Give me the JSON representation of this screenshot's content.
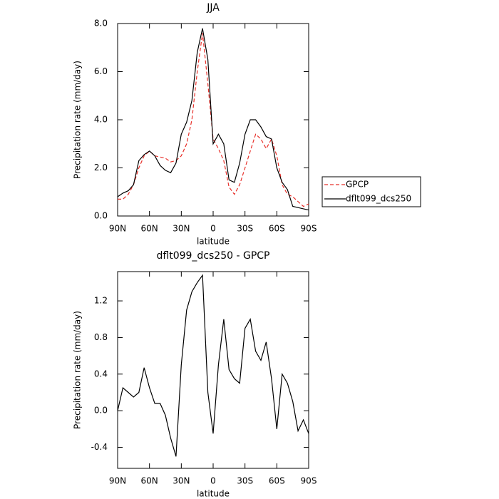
{
  "chart_data": [
    {
      "type": "line",
      "title": "JJA",
      "xlabel": "latitude",
      "ylabel": "Precipitation rate (mm/day)",
      "x": [
        90,
        85,
        80,
        75,
        70,
        65,
        60,
        55,
        50,
        45,
        40,
        35,
        30,
        25,
        20,
        15,
        10,
        5,
        0,
        -5,
        -10,
        -15,
        -20,
        -25,
        -30,
        -35,
        -40,
        -45,
        -50,
        -55,
        -60,
        -65,
        -70,
        -75,
        -80,
        -85,
        -90
      ],
      "xlim": [
        90,
        -90
      ],
      "xticks": [
        {
          "value": 90,
          "label": "90N"
        },
        {
          "value": 60,
          "label": "60N"
        },
        {
          "value": 30,
          "label": "30N"
        },
        0,
        {
          "value": -30,
          "label": "30S"
        },
        {
          "value": -60,
          "label": "60S"
        },
        {
          "value": -90,
          "label": "90S"
        }
      ],
      "ylim": [
        0,
        8
      ],
      "yticks": [
        {
          "value": 0,
          "label": "0.0"
        },
        {
          "value": 2,
          "label": "2.0"
        },
        {
          "value": 4,
          "label": "4.0"
        },
        {
          "value": 6,
          "label": "6.0"
        },
        {
          "value": 8,
          "label": "8.0"
        }
      ],
      "legend": "right",
      "series": [
        {
          "name": "GPCP",
          "color": "#e8302a",
          "line_style": "dashed",
          "values": [
            0.7,
            0.7,
            0.9,
            1.3,
            2.0,
            2.5,
            2.7,
            2.5,
            2.45,
            2.4,
            2.25,
            2.3,
            2.5,
            3.0,
            4.0,
            6.0,
            7.6,
            5.5,
            3.2,
            2.8,
            2.3,
            1.2,
            0.9,
            1.3,
            2.0,
            2.7,
            3.4,
            3.2,
            2.8,
            3.2,
            2.5,
            1.3,
            0.9,
            0.8,
            0.6,
            0.4,
            0.5
          ]
        },
        {
          "name": "dflt099_dcs250",
          "color": "#000000",
          "line_style": "solid",
          "values": [
            0.8,
            0.95,
            1.05,
            1.3,
            2.3,
            2.55,
            2.7,
            2.5,
            2.1,
            1.9,
            1.8,
            2.2,
            3.4,
            3.9,
            4.8,
            6.8,
            7.8,
            6.5,
            3.0,
            3.4,
            3.0,
            1.5,
            1.4,
            2.2,
            3.4,
            4.0,
            4.0,
            3.7,
            3.3,
            3.2,
            2.0,
            1.4,
            1.1,
            0.4,
            0.35,
            0.3,
            0.25
          ]
        }
      ]
    },
    {
      "type": "line",
      "title": "dflt099_dcs250 - GPCP",
      "xlabel": "latitude",
      "ylabel": "Precipitation rate (mm/day)",
      "x": [
        90,
        85,
        80,
        75,
        70,
        65,
        60,
        55,
        50,
        45,
        40,
        35,
        30,
        25,
        20,
        15,
        10,
        5,
        0,
        -5,
        -10,
        -15,
        -20,
        -25,
        -30,
        -35,
        -40,
        -45,
        -50,
        -55,
        -60,
        -65,
        -70,
        -75,
        -80,
        -85,
        -90
      ],
      "xlim": [
        90,
        -90
      ],
      "xticks": [
        {
          "value": 90,
          "label": "90N"
        },
        {
          "value": 60,
          "label": "60N"
        },
        {
          "value": 30,
          "label": "30N"
        },
        0,
        {
          "value": -30,
          "label": "30S"
        },
        {
          "value": -60,
          "label": "60S"
        },
        {
          "value": -90,
          "label": "90S"
        }
      ],
      "ylim": [
        -0.63,
        1.52
      ],
      "yticks": [
        {
          "value": -0.4,
          "label": "-0.4"
        },
        {
          "value": 0,
          "label": "0.0"
        },
        {
          "value": 0.4,
          "label": "0.4"
        },
        {
          "value": 0.8,
          "label": "0.8"
        },
        {
          "value": 1.2,
          "label": "1.2"
        }
      ],
      "color": "#000000",
      "values": [
        0.0,
        0.25,
        0.2,
        0.15,
        0.2,
        0.47,
        0.25,
        0.08,
        0.08,
        -0.05,
        -0.3,
        -0.5,
        0.5,
        1.1,
        1.3,
        1.4,
        1.48,
        0.2,
        -0.25,
        0.5,
        1.0,
        0.45,
        0.35,
        0.3,
        0.9,
        1.0,
        0.65,
        0.55,
        0.75,
        0.35,
        -0.2,
        0.4,
        0.3,
        0.1,
        -0.22,
        -0.1,
        -0.25
      ]
    }
  ]
}
